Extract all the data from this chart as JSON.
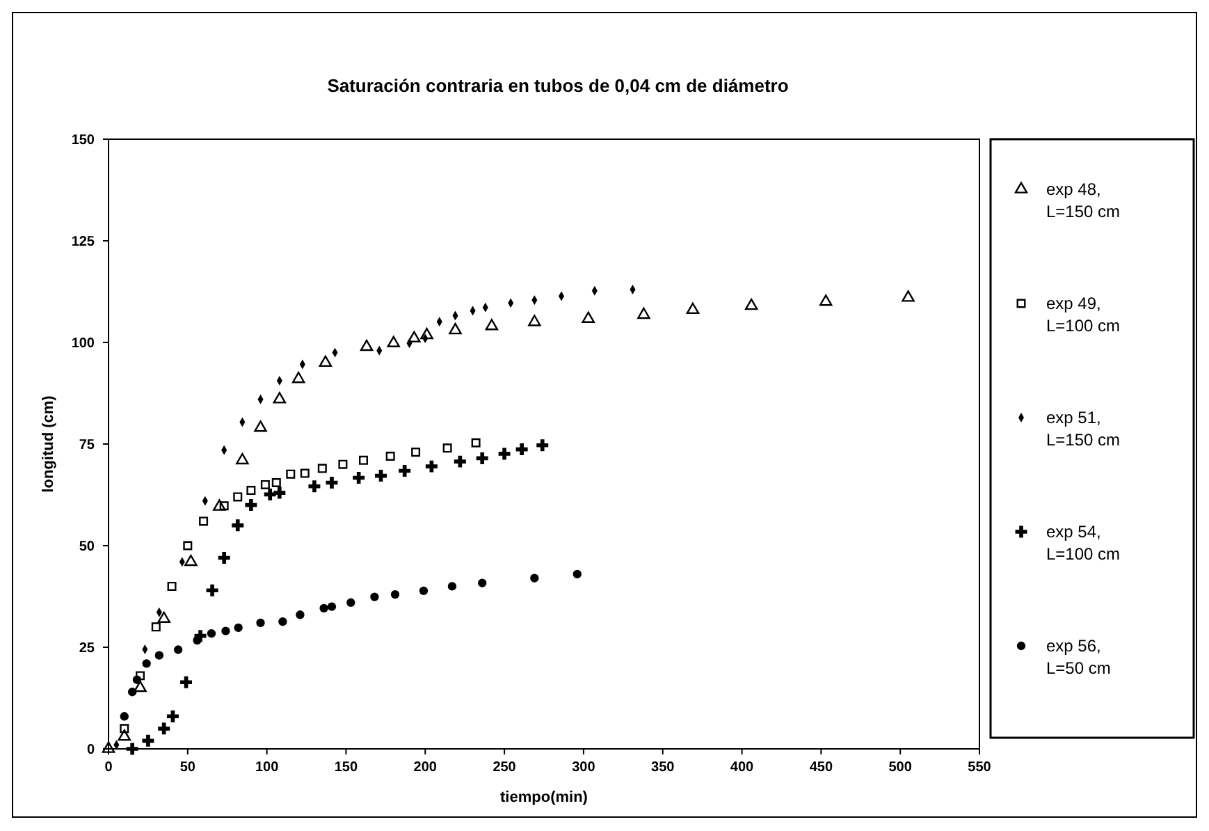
{
  "chart_data": {
    "type": "scatter",
    "title": "Saturación contraria en tubos de 0,04 cm de diámetro",
    "xlabel": "tiempo(min)",
    "ylabel": "longitud (cm)",
    "xlim": [
      0,
      550
    ],
    "xticks": [
      0,
      50,
      100,
      150,
      200,
      250,
      300,
      350,
      400,
      450,
      500,
      550
    ],
    "ylim": [
      0,
      150
    ],
    "yticks": [
      0,
      25,
      50,
      75,
      100,
      125,
      150
    ],
    "grid": false,
    "legend": "right",
    "series": [
      {
        "name": "exp 48, L=150 cm",
        "color": "#000000",
        "marker": "triangle",
        "x": [
          0,
          10,
          20,
          35,
          52,
          70,
          84.5,
          96,
          108,
          120,
          137,
          163,
          180,
          193,
          201,
          219,
          242,
          269,
          303,
          338,
          369,
          406,
          453,
          505
        ],
        "values": [
          0,
          3,
          15,
          32,
          46,
          59.6,
          71,
          79,
          86,
          91,
          95,
          98.9,
          99.8,
          101,
          101.8,
          103,
          104,
          105,
          105.8,
          106.8,
          108,
          109,
          110,
          111
        ]
      },
      {
        "name": "exp 49, L=100 cm",
        "color": "#000000",
        "marker": "square",
        "x": [
          10,
          20,
          30,
          40,
          50,
          60,
          73,
          81.6,
          90,
          99,
          106,
          115,
          124,
          135,
          148,
          161,
          178,
          194,
          214,
          232
        ],
        "values": [
          5,
          18,
          30,
          40,
          50,
          56,
          59.8,
          62,
          63.6,
          65,
          65.5,
          67.6,
          67.8,
          69,
          70,
          71,
          72,
          73,
          74,
          75.3
        ]
      },
      {
        "name": "exp 51, L=150 cm",
        "color": "#000000",
        "marker": "diamond",
        "x": [
          5,
          23,
          32,
          46.5,
          61,
          73,
          84.5,
          96,
          108,
          122.5,
          143,
          171,
          190,
          200,
          209,
          219,
          230,
          238,
          254,
          269,
          286,
          307,
          331
        ],
        "values": [
          1,
          24.5,
          33.6,
          46,
          61,
          73.5,
          80.4,
          86,
          90.6,
          94.6,
          97.5,
          98,
          99.8,
          101,
          105.1,
          106.6,
          107.8,
          108.6,
          109.7,
          110.4,
          111.4,
          112.7,
          113
        ]
      },
      {
        "name": "exp 54, L=100 cm",
        "color": "#000000",
        "marker": "cross",
        "x": [
          15,
          25,
          35,
          40.6,
          49,
          58,
          65.5,
          73,
          81.6,
          90,
          102,
          108,
          130,
          141,
          158,
          172,
          187,
          204,
          222,
          236,
          250,
          261,
          274
        ],
        "values": [
          0,
          2,
          5,
          8,
          16.4,
          27.8,
          39,
          47,
          55,
          60,
          62.6,
          63,
          64.6,
          65.5,
          66.7,
          67.2,
          68.4,
          69.5,
          70.7,
          71.5,
          72.6,
          73.7,
          74.7
        ]
      },
      {
        "name": "exp 56, L=50 cm",
        "color": "#000000",
        "marker": "circle",
        "x": [
          10,
          15,
          18,
          24,
          32,
          44,
          56,
          65,
          74,
          82,
          96,
          110,
          121,
          136,
          141,
          153,
          168,
          181,
          199,
          217,
          236,
          269,
          296
        ],
        "values": [
          8,
          14,
          17,
          21,
          23,
          24.4,
          26.7,
          28.4,
          29,
          29.8,
          31,
          31.3,
          33,
          34.6,
          35,
          36,
          37.4,
          38,
          38.9,
          40,
          40.8,
          42,
          43
        ]
      }
    ]
  }
}
